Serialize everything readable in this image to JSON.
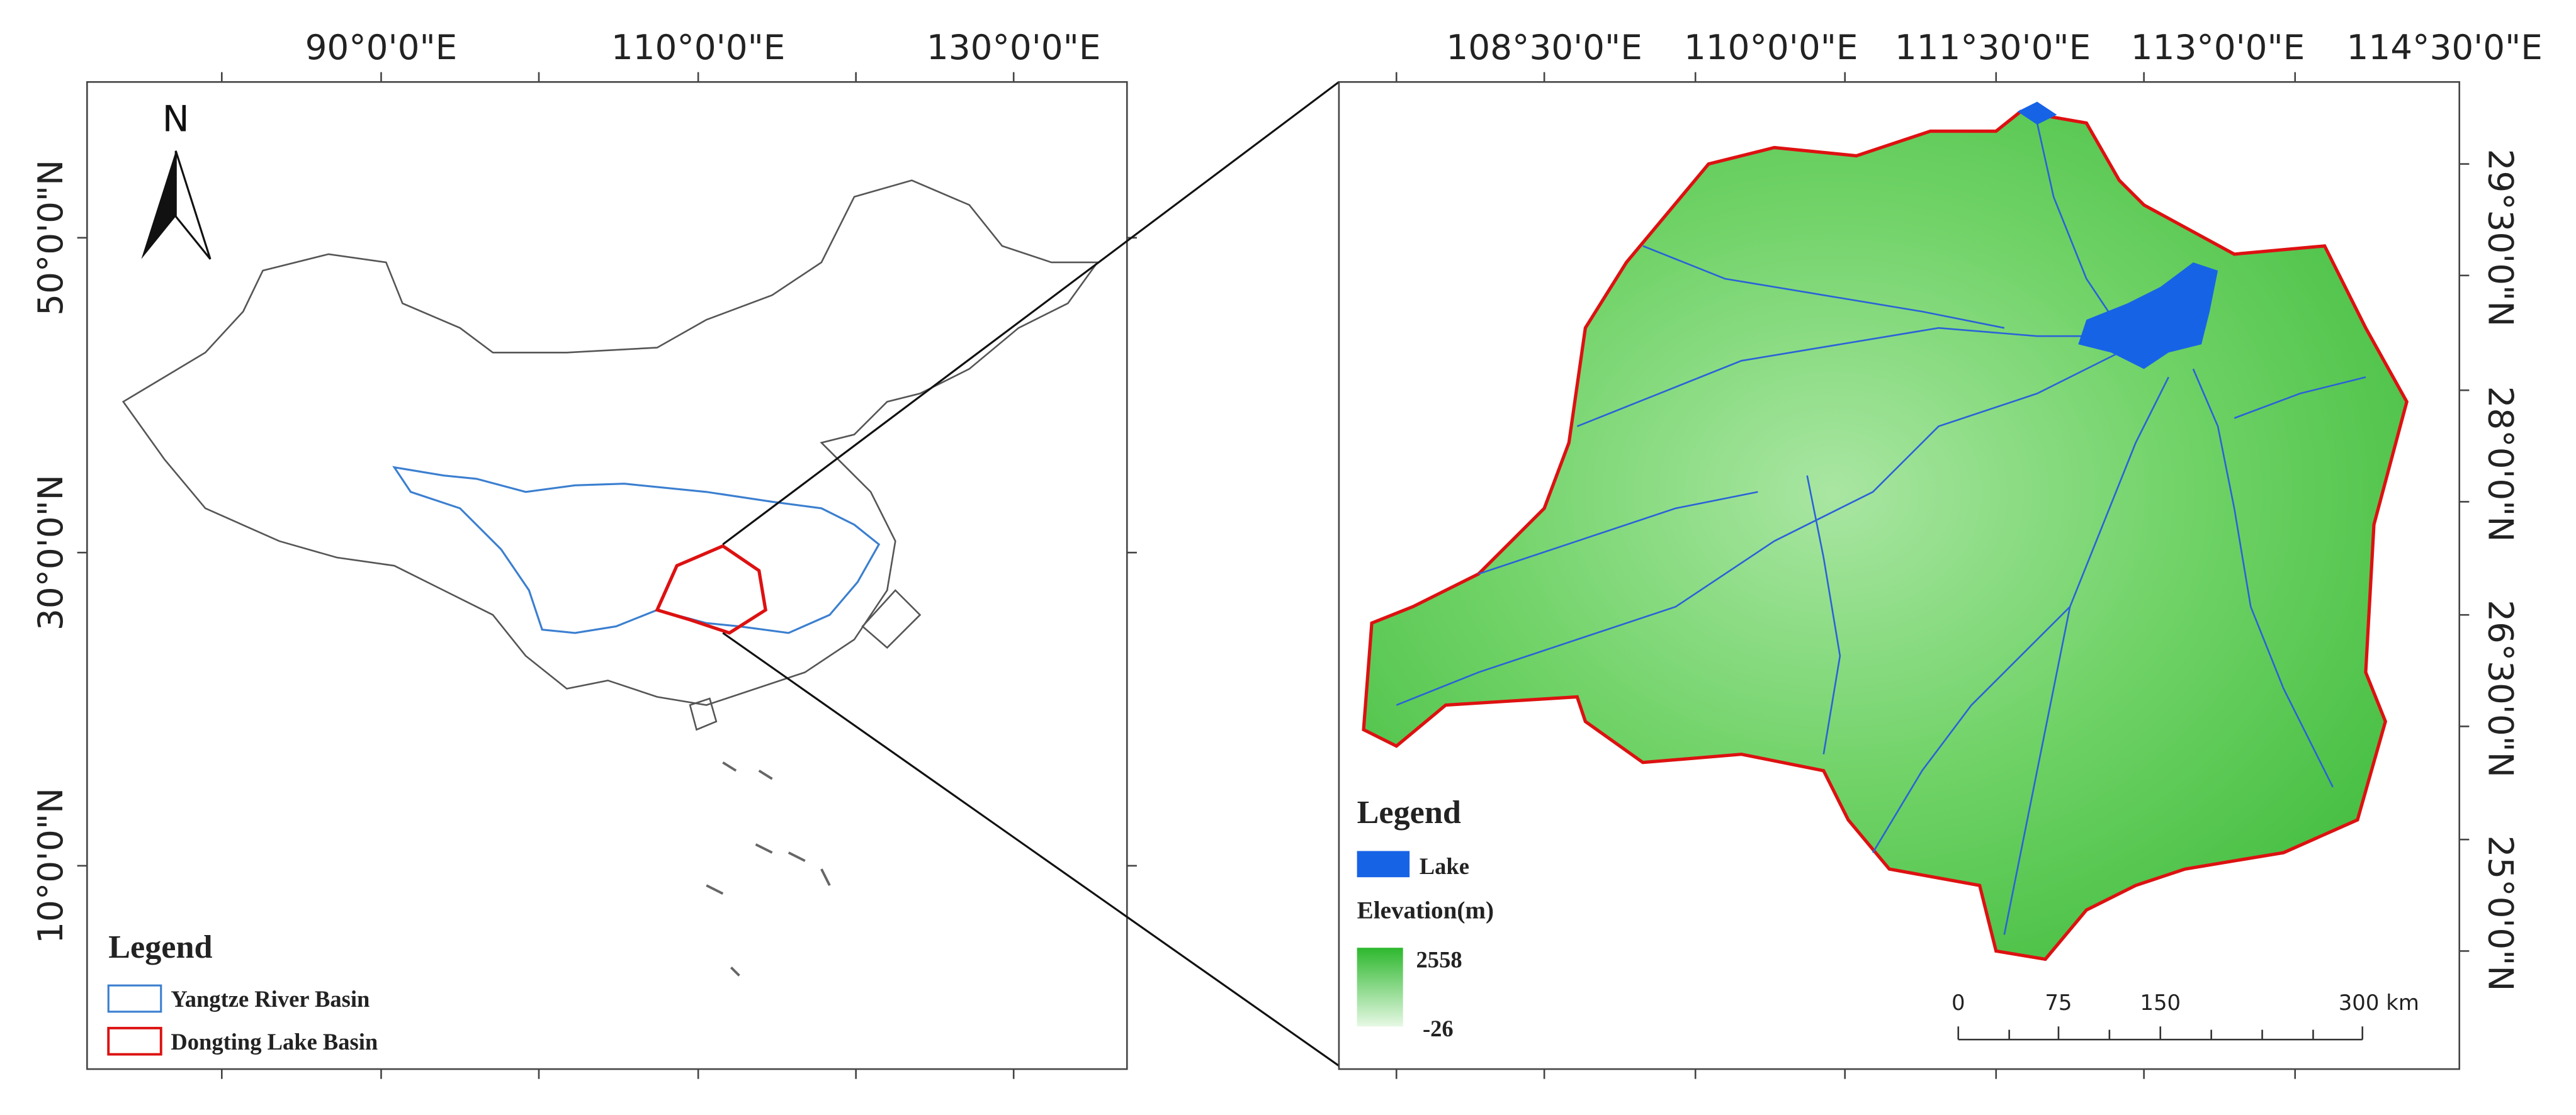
{
  "left_map": {
    "top_labels": [
      "90°0'0\"E",
      "110°0'0\"E",
      "130°0'0\"E"
    ],
    "side_labels": [
      "50°0'0\"N",
      "30°0'0\"N",
      "10°0'0\"N"
    ],
    "north_arrow": "N",
    "legend": {
      "title": "Legend",
      "items": [
        "Yangtze River Basin",
        "Dongting Lake Basin"
      ]
    }
  },
  "right_map": {
    "top_labels": [
      "108°30'0\"E",
      "110°0'0\"E",
      "111°30'0\"E",
      "113°0'0\"E",
      "114°30'0\"E"
    ],
    "side_labels": [
      "29°30'0\"N",
      "28°0'0\"N",
      "26°30'0\"N",
      "25°0'0\"N"
    ],
    "legend": {
      "title": "Legend",
      "lake": "Lake",
      "elevation_title": "Elevation(m)",
      "elevation_max": "2558",
      "elevation_min": "-26"
    },
    "scale_bar": [
      "0",
      "75",
      "150",
      "300 km"
    ]
  }
}
